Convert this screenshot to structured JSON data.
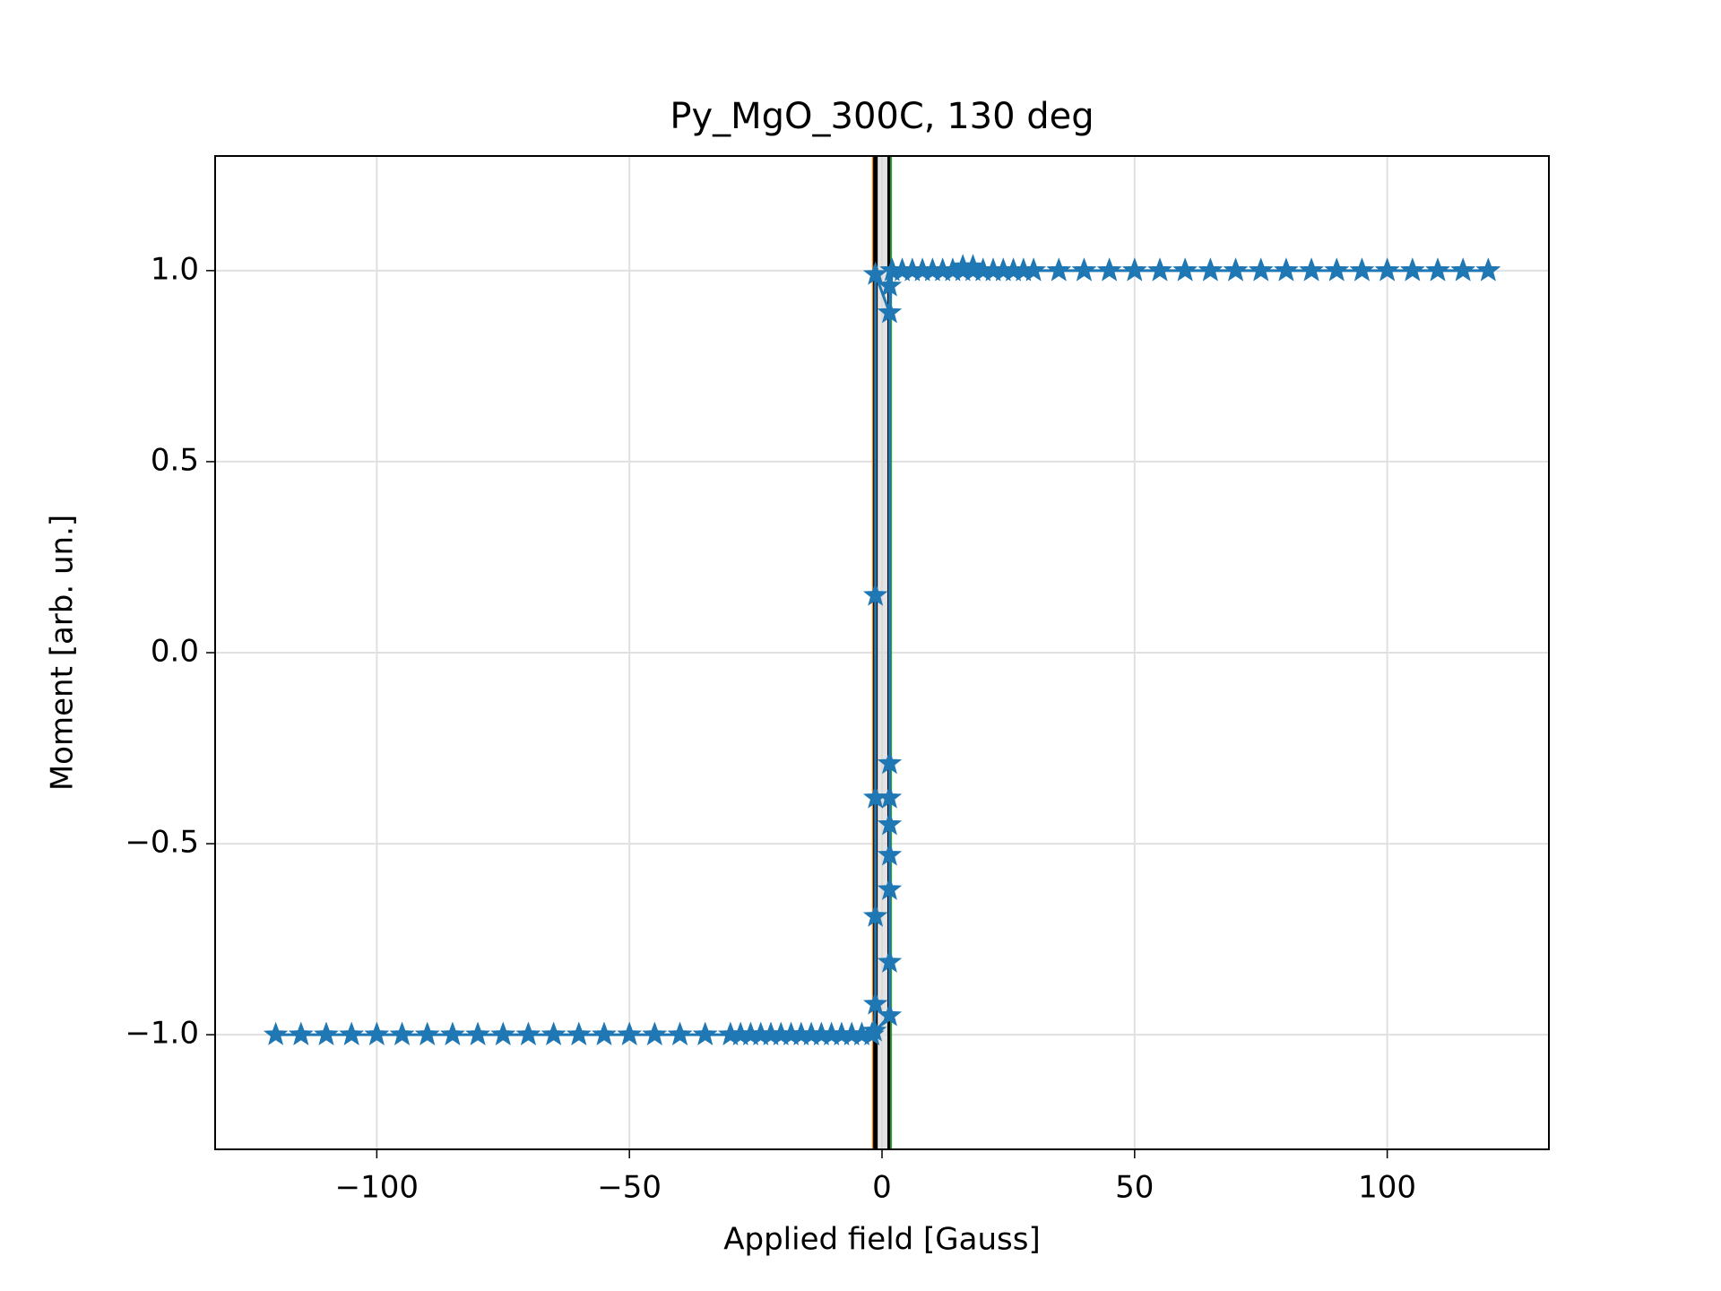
{
  "chart_data": {
    "type": "line",
    "title": "Py_MgO_300C, 130 deg",
    "x_label": "Applied field [Gauss]",
    "y_label": "Moment [arb. un.]",
    "marker": "star",
    "grid": true,
    "xlim": [
      -132,
      132
    ],
    "ylim": [
      -1.3,
      1.3
    ],
    "xticks": [
      {
        "value": -100,
        "label": "−100"
      },
      {
        "value": -50,
        "label": "−50"
      },
      0,
      50,
      100
    ],
    "yticks": [
      {
        "value": -1,
        "label": "−1.0"
      },
      {
        "value": -0.5,
        "label": "−0.5"
      },
      {
        "value": 0,
        "label": "0.0"
      },
      0.5,
      {
        "value": 1,
        "label": "1.0"
      }
    ],
    "span": [
      -1.3,
      1.5
    ],
    "vlines": [
      {
        "x": -1.8,
        "color": "#ff7f0e"
      },
      {
        "x": -1.3,
        "color": "#000000"
      },
      {
        "x": 1.5,
        "color": "#000000"
      },
      {
        "x": 1.8,
        "color": "#2ca02c"
      }
    ],
    "x": [
      120,
      115,
      110,
      105,
      100,
      95,
      90,
      85,
      80,
      75,
      70,
      65,
      60,
      55,
      50,
      45,
      40,
      35,
      30,
      28,
      26,
      24,
      22,
      20,
      18,
      16,
      14,
      12,
      10,
      8,
      6,
      4,
      2,
      1.5,
      -1.3,
      -1.3,
      -1.3,
      -1.3,
      -1.3,
      -1.5,
      -2,
      -4,
      -6,
      -8,
      -10,
      -12,
      -14,
      -16,
      -18,
      -20,
      -22,
      -24,
      -26,
      -28,
      -30,
      -35,
      -40,
      -45,
      -50,
      -55,
      -60,
      -65,
      -70,
      -75,
      -80,
      -85,
      -90,
      -95,
      -100,
      -105,
      -110,
      -115,
      -120,
      -115,
      -110,
      -105,
      -100,
      -95,
      -90,
      -85,
      -80,
      -75,
      -70,
      -65,
      -60,
      -55,
      -50,
      -45,
      -40,
      -35,
      -30,
      -28,
      -26,
      -24,
      -22,
      -20,
      -18,
      -16,
      -14,
      -12,
      -10,
      -8,
      -6,
      -4,
      -2,
      1.5,
      1.5,
      1.5,
      1.5,
      1.5,
      1.5,
      1.5,
      1.5,
      2,
      4,
      6,
      8,
      10,
      12,
      14,
      16,
      18,
      20,
      22,
      24,
      26,
      28,
      30,
      35,
      40,
      45,
      50,
      55,
      60,
      65,
      70,
      75,
      80,
      85,
      90,
      95,
      100,
      105,
      110,
      115,
      120
    ],
    "series": [
      {
        "color": "#1f77b4",
        "values": [
          1,
          1,
          1,
          1,
          1,
          1,
          1,
          1,
          1,
          1,
          1,
          1,
          1,
          1,
          1,
          1,
          1,
          1,
          1,
          1,
          1,
          1,
          1,
          1,
          1.01,
          1.01,
          1,
          1,
          1,
          1,
          1,
          1,
          1,
          0.89,
          0.99,
          0.15,
          -0.38,
          -0.69,
          -0.92,
          -0.99,
          -1,
          -1,
          -1,
          -1,
          -1,
          -1,
          -1,
          -1,
          -1,
          -1,
          -1,
          -1,
          -1,
          -1,
          -1,
          -1,
          -1,
          -1,
          -1,
          -1,
          -1,
          -1,
          -1,
          -1,
          -1,
          -1,
          -1,
          -1,
          -1,
          -1,
          -1,
          -1,
          -1,
          -1,
          -1,
          -1,
          -1,
          -1,
          -1,
          -1,
          -1,
          -1,
          -1,
          -1,
          -1,
          -1,
          -1,
          -1,
          -1,
          -1,
          -1,
          -1,
          -1,
          -1,
          -1,
          -1,
          -1,
          -1,
          -1,
          -1,
          -1,
          -1,
          -1,
          -1,
          -1,
          -0.95,
          -0.81,
          -0.62,
          -0.53,
          -0.45,
          -0.38,
          -0.29,
          0.96,
          1,
          1,
          1,
          1,
          1,
          1,
          1,
          1,
          1,
          1,
          1,
          1,
          1,
          1,
          1,
          1,
          1,
          1,
          1,
          1,
          1,
          1,
          1,
          1,
          1,
          1,
          1,
          1,
          1,
          1,
          1,
          1,
          1
        ]
      }
    ]
  }
}
